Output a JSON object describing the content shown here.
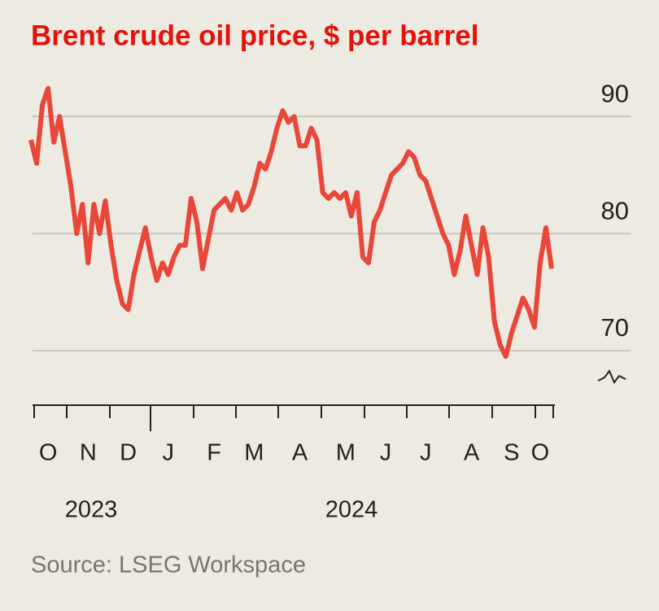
{
  "chart_data": {
    "type": "line",
    "title": "Brent crude oil price, $ per barrel",
    "source": "Source: LSEG Workspace",
    "categories": [
      null,
      null,
      null,
      "O",
      null,
      null,
      null,
      null,
      null,
      null,
      "N",
      null,
      null,
      null,
      null,
      null,
      null,
      "D",
      null,
      null,
      null,
      null,
      null,
      null,
      "J",
      null,
      null,
      null,
      null,
      null,
      null,
      null,
      "F",
      null,
      null,
      null,
      null,
      null,
      null,
      "M",
      null,
      null,
      null,
      null,
      null,
      null,
      null,
      "A",
      null,
      null,
      null,
      null,
      null,
      null,
      null,
      "M",
      null,
      null,
      null,
      null,
      null,
      null,
      "J",
      null,
      null,
      null,
      null,
      null,
      null,
      "J",
      null,
      null,
      null,
      null,
      null,
      null,
      null,
      "A",
      null,
      null,
      null,
      null,
      null,
      null,
      "S",
      null,
      null,
      null,
      null,
      "O",
      null,
      null
    ],
    "x_groups": [
      "2023",
      "2024"
    ],
    "series": [
      {
        "name": "Brent",
        "color": "#e8473a",
        "values": [
          88.0,
          86.0,
          91,
          92.4,
          87.8,
          90,
          87,
          84,
          80,
          82.5,
          77.5,
          82.5,
          80,
          82.8,
          79,
          76,
          74,
          73.5,
          76.5,
          78.5,
          80.5,
          78,
          76,
          77.5,
          76.5,
          78,
          79,
          79,
          83,
          81,
          77,
          79.5,
          82,
          82.5,
          83,
          82,
          83.5,
          82,
          82.5,
          84,
          86,
          85.5,
          87,
          89,
          90.5,
          89.5,
          90,
          87.5,
          87.5,
          89,
          88,
          83.5,
          83,
          83.5,
          83,
          83.5,
          81.5,
          83.5,
          78,
          77.5,
          81,
          82,
          83.5,
          85,
          85.5,
          86,
          87,
          86.5,
          85,
          84.5,
          83,
          81.5,
          80,
          79,
          76.5,
          78.5,
          81.5,
          79,
          76.5,
          80.5,
          78,
          72.5,
          70.5,
          69.5,
          71.5,
          73,
          74.5,
          73.5,
          72,
          77.5,
          80.5,
          77
        ]
      }
    ],
    "ylim": [
      67.5,
      93
    ],
    "yticks": [
      70,
      80,
      90
    ],
    "grid": true
  }
}
